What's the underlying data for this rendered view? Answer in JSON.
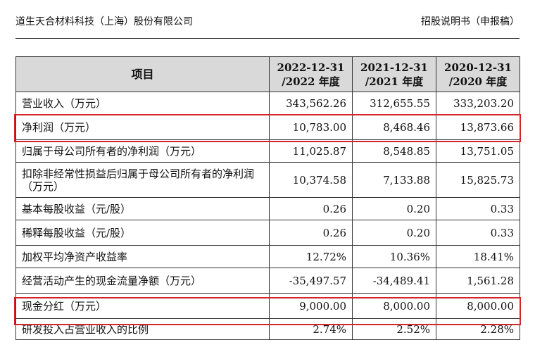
{
  "header": {
    "company": "道生天合材料科技（上海）股份有限公司",
    "doc_title": "招股说明书（申报稿）"
  },
  "table": {
    "head": {
      "item": "项目",
      "cols": [
        {
          "date": "2022-12-31",
          "year": "/2022 年度"
        },
        {
          "date": "2021-12-31",
          "year": "/2021 年度"
        },
        {
          "date": "2020-12-31",
          "year": "/2020 年度"
        }
      ]
    },
    "rows": [
      {
        "label": "营业收入（万元）",
        "v": [
          "343,562.26",
          "312,655.55",
          "333,203.20"
        ]
      },
      {
        "label": "净利润（万元）",
        "v": [
          "10,783.00",
          "8,468.46",
          "13,873.66"
        ]
      },
      {
        "label": "归属于母公司所有者的净利润（万元）",
        "v": [
          "11,025.87",
          "8,548.85",
          "13,751.05"
        ]
      },
      {
        "label": "扣除非经常性损益后归属于母公司所有者的净利润（万元）",
        "v": [
          "10,374.58",
          "7,133.88",
          "15,825.73"
        ]
      },
      {
        "label": "基本每股收益（元/股）",
        "v": [
          "0.26",
          "0.20",
          "0.33"
        ]
      },
      {
        "label": "稀释每股收益（元/股）",
        "v": [
          "0.26",
          "0.20",
          "0.33"
        ]
      },
      {
        "label": "加权平均净资产收益率",
        "v": [
          "12.72%",
          "10.36%",
          "18.41%"
        ]
      },
      {
        "label": "经营活动产生的现金流量净额（万元）",
        "v": [
          "-35,497.57",
          "-34,489.41",
          "1,561.28"
        ]
      },
      {
        "label": "现金分红（万元）",
        "v": [
          "9,000.00",
          "8,000.00",
          "8,000.00"
        ]
      },
      {
        "label": "研发投入占营业收入的比例",
        "v": [
          "2.74%",
          "2.52%",
          "2.28%"
        ]
      }
    ]
  },
  "colors": {
    "highlight": "#d6242c",
    "header_bg": "#d9d9d9"
  }
}
